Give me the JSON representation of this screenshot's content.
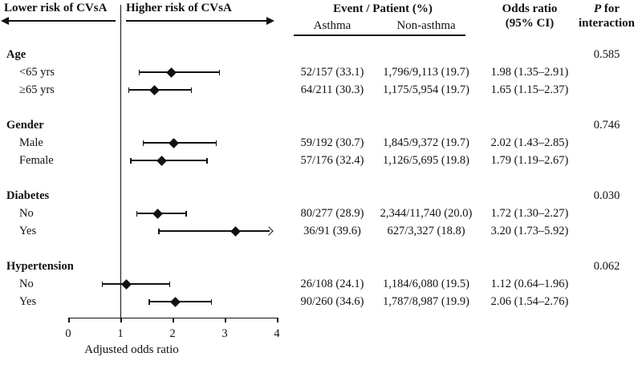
{
  "header": {
    "lower_risk_label": "Lower risk of CVsA",
    "higher_risk_label": "Higher risk of CVsA",
    "event_patient_header": "Event / Patient (%)",
    "asthma_col": "Asthma",
    "non_asthma_col": "Non-asthma",
    "odds_ratio_line1": "Odds ratio",
    "odds_ratio_line2": "(95% CI)",
    "p_italic": "P",
    "p_line1_rest": " for",
    "p_line2": "interaction"
  },
  "axis": {
    "label": "Adjusted odds ratio",
    "ticks": [
      "0",
      "1",
      "2",
      "3",
      "4"
    ]
  },
  "colors": {
    "ink": "#111111",
    "background": "#ffffff"
  },
  "chart_data": {
    "type": "forest",
    "xlabel": "Adjusted odds ratio",
    "xlim": [
      0,
      4
    ],
    "reference_line": 1,
    "value_columns": [
      "Event / Patient (%) — Asthma",
      "Event / Patient (%) — Non-asthma",
      "Odds ratio (95% CI)",
      "P for interaction"
    ],
    "groups": [
      {
        "name": "Age",
        "p_interaction": "0.585",
        "rows": [
          {
            "label": "<65 yrs",
            "asthma": "52/157 (33.1)",
            "non_asthma": "1,796/9,113 (19.7)",
            "or": 1.98,
            "ci_low": 1.35,
            "ci_high": 2.91,
            "or_text": "1.98 (1.35–2.91)",
            "arrow_right": false
          },
          {
            "label": "≥65 yrs",
            "asthma": "64/211 (30.3)",
            "non_asthma": "1,175/5,954 (19.7)",
            "or": 1.65,
            "ci_low": 1.15,
            "ci_high": 2.37,
            "or_text": "1.65 (1.15–2.37)",
            "arrow_right": false
          }
        ]
      },
      {
        "name": "Gender",
        "p_interaction": "0.746",
        "rows": [
          {
            "label": "Male",
            "asthma": "59/192 (30.7)",
            "non_asthma": "1,845/9,372 (19.7)",
            "or": 2.02,
            "ci_low": 1.43,
            "ci_high": 2.85,
            "or_text": "2.02 (1.43–2.85)",
            "arrow_right": false
          },
          {
            "label": "Female",
            "asthma": "57/176 (32.4)",
            "non_asthma": "1,126/5,695 (19.8)",
            "or": 1.79,
            "ci_low": 1.19,
            "ci_high": 2.67,
            "or_text": "1.79 (1.19–2.67)",
            "arrow_right": false
          }
        ]
      },
      {
        "name": "Diabetes",
        "p_interaction": "0.030",
        "rows": [
          {
            "label": "No",
            "asthma": "80/277 (28.9)",
            "non_asthma": "2,344/11,740 (20.0)",
            "or": 1.72,
            "ci_low": 1.3,
            "ci_high": 2.27,
            "or_text": "1.72 (1.30–2.27)",
            "arrow_right": false
          },
          {
            "label": "Yes",
            "asthma": "36/91 (39.6)",
            "non_asthma": "627/3,327 (18.8)",
            "or": 3.2,
            "ci_low": 1.73,
            "ci_high": 5.92,
            "or_text": "3.20 (1.73–5.92)",
            "arrow_right": true
          }
        ]
      },
      {
        "name": "Hypertension",
        "p_interaction": "0.062",
        "rows": [
          {
            "label": "No",
            "asthma": "26/108 (24.1)",
            "non_asthma": "1,184/6,080 (19.5)",
            "or": 1.12,
            "ci_low": 0.64,
            "ci_high": 1.96,
            "or_text": "1.12 (0.64–1.96)",
            "arrow_right": false
          },
          {
            "label": "Yes",
            "asthma": "90/260 (34.6)",
            "non_asthma": "1,787/8,987 (19.9)",
            "or": 2.06,
            "ci_low": 1.54,
            "ci_high": 2.76,
            "or_text": "2.06 (1.54–2.76)",
            "arrow_right": false
          }
        ]
      }
    ]
  }
}
